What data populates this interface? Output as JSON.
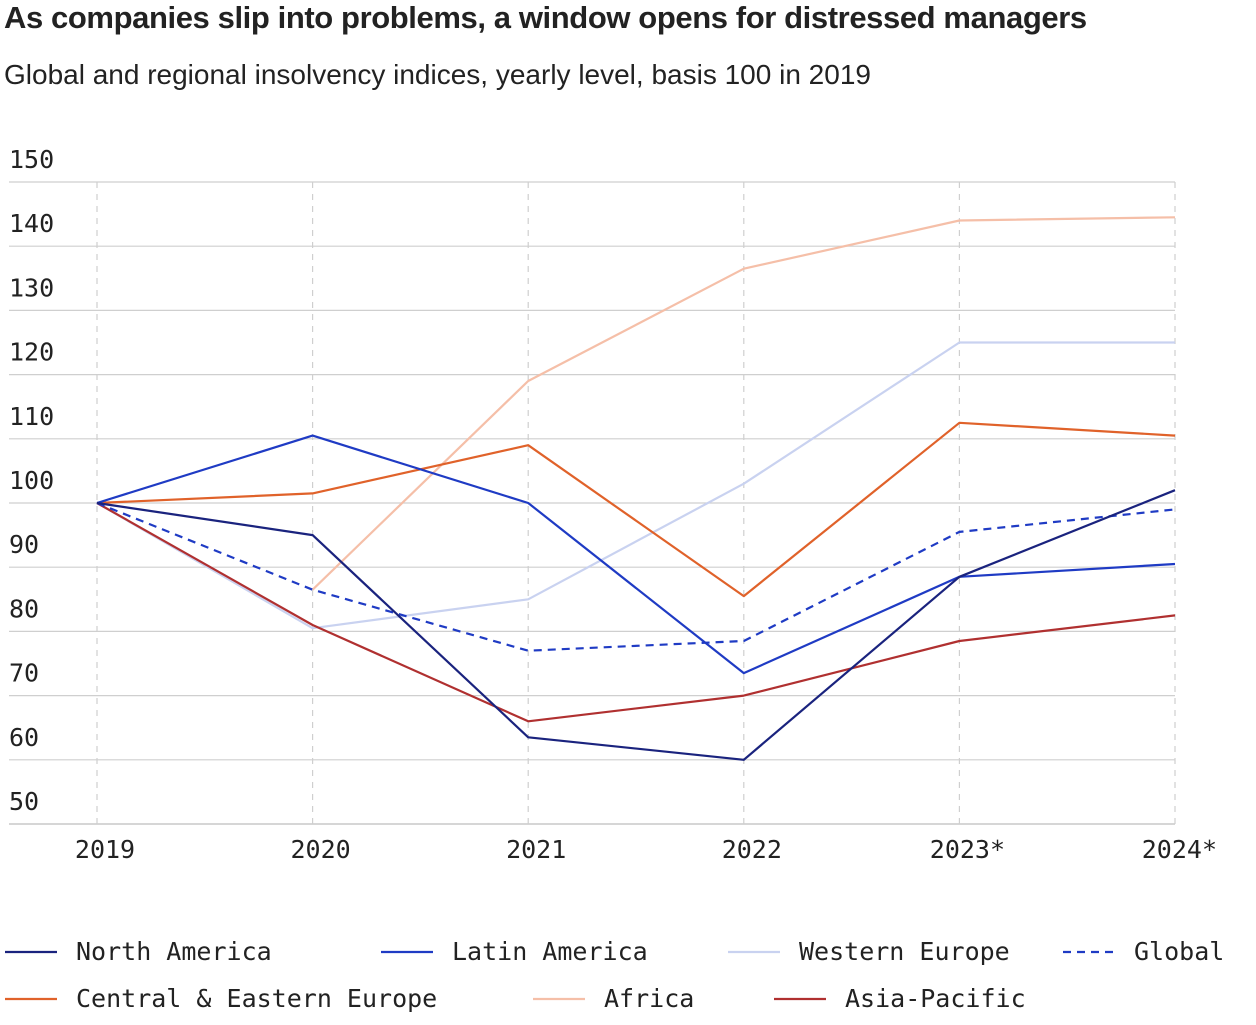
{
  "header": {
    "title": "As companies slip into problems, a window opens for distressed managers",
    "subtitle": "Global and regional insolvency indices, yearly level, basis 100 in 2019"
  },
  "chart_data": {
    "type": "line",
    "title": "As companies slip into problems, a window opens for distressed managers",
    "subtitle": "Global and regional insolvency indices, yearly level, basis 100 in 2019",
    "xlabel": "",
    "ylabel": "",
    "x": [
      "2019",
      "2020",
      "2021",
      "2022",
      "2023*",
      "2024*"
    ],
    "ylim": [
      50,
      150
    ],
    "yticks": [
      150,
      140,
      130,
      120,
      110,
      100,
      90,
      80,
      70,
      60,
      50
    ],
    "grid": true,
    "legend_position": "bottom",
    "series": [
      {
        "name": "North America",
        "color": "#1a237e",
        "dash": "solid",
        "values": [
          100,
          95,
          63.5,
          60,
          88.5,
          102
        ]
      },
      {
        "name": "Latin America",
        "color": "#1f3bc4",
        "dash": "solid",
        "values": [
          100,
          110.5,
          100,
          73.5,
          88.5,
          90.5
        ]
      },
      {
        "name": "Western Europe",
        "color": "#c9d2f0",
        "dash": "solid",
        "values": [
          100,
          80.5,
          85,
          103,
          125,
          125
        ]
      },
      {
        "name": "Global",
        "color": "#1f3bc4",
        "dash": "dashed",
        "values": [
          100,
          86.5,
          77,
          78.5,
          95.5,
          99
        ]
      },
      {
        "name": "Central & Eastern Europe",
        "color": "#e0622a",
        "dash": "solid",
        "values": [
          100,
          101.5,
          109,
          85.5,
          112.5,
          110.5
        ]
      },
      {
        "name": "Africa",
        "color": "#f5bfa8",
        "dash": "solid",
        "values": [
          null,
          86.5,
          119,
          136.5,
          144,
          144.5
        ]
      },
      {
        "name": "Asia-Pacific",
        "color": "#b03030",
        "dash": "solid",
        "values": [
          100,
          81,
          66,
          70,
          78.5,
          82.5
        ]
      }
    ]
  }
}
